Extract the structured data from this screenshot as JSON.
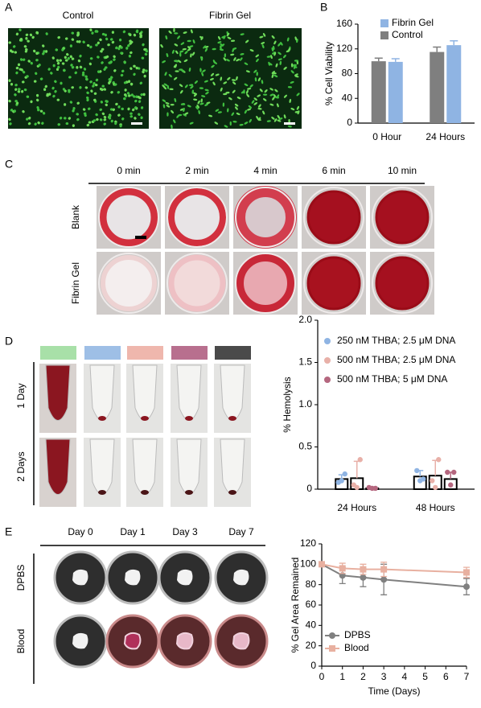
{
  "panels": {
    "a": {
      "letter": "A",
      "labels": [
        "Control",
        "Fibrin Gel"
      ]
    },
    "b": {
      "letter": "B"
    },
    "c": {
      "letter": "C",
      "columns": [
        "0 min",
        "2 min",
        "4 min",
        "6 min",
        "10 min"
      ],
      "rows": [
        "Blank",
        "Fibrin Gel"
      ]
    },
    "d": {
      "letter": "D",
      "rows": [
        "1 Day",
        "2 Days"
      ]
    },
    "e": {
      "letter": "E",
      "columns": [
        "Day 0",
        "Day 1",
        "Day 3",
        "Day 7"
      ],
      "rows": [
        "DPBS",
        "Blood"
      ]
    }
  },
  "chart_data": [
    {
      "type": "bar",
      "y_label": "% Cell Viability",
      "categories": [
        "0 Hour",
        "24 Hours"
      ],
      "series": [
        {
          "name": "Fibrin Gel",
          "color": "#8fb4e3",
          "values": [
            99,
            126
          ],
          "errors": [
            5,
            7
          ]
        },
        {
          "name": "Control",
          "color": "#7f7f7f",
          "values": [
            100,
            115
          ],
          "errors": [
            5,
            8
          ]
        }
      ],
      "ylim": [
        0,
        160
      ],
      "yticks": [
        0,
        40,
        80,
        120,
        160
      ],
      "legend": "upper left"
    },
    {
      "type": "dotbar",
      "y_label": "% Hemolysis",
      "categories": [
        "24 Hours",
        "48 Hours"
      ],
      "series": [
        {
          "name": "250 nM THBA; 2.5 μM DNA",
          "color": "#8fb4e3",
          "values": [
            0.12,
            0.15
          ],
          "errors": [
            0.05,
            0.07
          ],
          "points": [
            [
              0.08,
              0.1,
              0.18
            ],
            [
              0.22,
              0.1,
              0.12
            ]
          ]
        },
        {
          "name": "500 nM THBA; 2.5 μM DNA",
          "color": "#e8b0a8",
          "values": [
            0.13,
            0.16
          ],
          "errors": [
            0.2,
            0.18
          ],
          "points": [
            [
              0.05,
              0.02,
              0.35
            ],
            [
              0.1,
              0.02,
              0.35
            ]
          ]
        },
        {
          "name": "500 nM THBA; 5 μM DNA",
          "color": "#b5677f",
          "values": [
            0.01,
            0.12
          ],
          "errors": [
            0,
            0.08
          ],
          "points": [
            [
              0.02,
              0.01,
              0.01
            ],
            [
              0.2,
              0.05,
              0.2
            ]
          ]
        }
      ],
      "ylim": [
        0,
        2
      ],
      "yticks": [
        0,
        0.5,
        {
          "value": 1,
          "label": "1.0"
        },
        1.5,
        {
          "value": 2,
          "label": "2.0"
        }
      ],
      "legend": "upper left"
    },
    {
      "type": "line",
      "x_label": "Time (Days)",
      "y_label": "% Gel Area Remained",
      "x": [
        0,
        1,
        2,
        3,
        7
      ],
      "series": [
        {
          "name": "DPBS",
          "color": "#808080",
          "marker": "circle",
          "values": [
            100,
            89,
            87,
            85,
            78
          ],
          "errors": [
            0,
            8,
            9,
            15,
            8
          ]
        },
        {
          "name": "Blood",
          "color": "#e8b0a0",
          "marker": "square",
          "values": [
            100,
            96,
            95,
            95,
            92
          ],
          "errors": [
            0,
            5,
            5,
            7,
            5
          ]
        }
      ],
      "xlim": [
        0,
        7
      ],
      "xticks": [
        0,
        1,
        2,
        3,
        4,
        5,
        6,
        7
      ],
      "ylim": [
        0,
        120
      ],
      "yticks": [
        0,
        20,
        40,
        60,
        80,
        100,
        120
      ],
      "legend": "lower left"
    }
  ]
}
